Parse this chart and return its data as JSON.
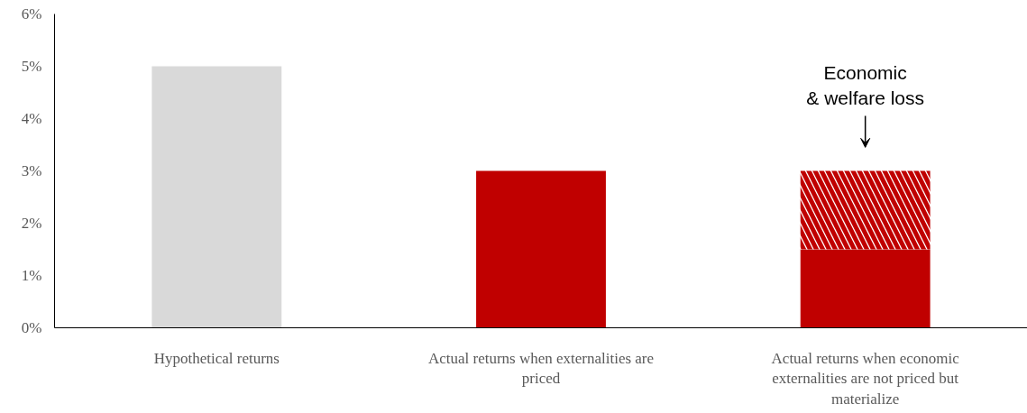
{
  "chart_data": {
    "type": "bar",
    "stacked": true,
    "categories": [
      "Hypothetical returns",
      "Actual returns when externalities are priced",
      "Actual returns when economic externalities are not priced but materialize"
    ],
    "series": [
      {
        "colors": [
          "#d9d9d9",
          "#c00000",
          "#c00000"
        ],
        "values": [
          5,
          3,
          1.5
        ]
      },
      {
        "color": "#c00000",
        "values": [
          null,
          null,
          1.5
        ]
      }
    ],
    "ylim": [
      0,
      6
    ],
    "yticks": [
      {
        "value": 0,
        "label": "0%"
      },
      {
        "value": 1,
        "label": "1%"
      },
      {
        "value": 2,
        "label": "2%"
      },
      {
        "value": 3,
        "label": "3%"
      },
      {
        "value": 4,
        "label": "4%"
      },
      {
        "value": 5,
        "label": "5%"
      },
      {
        "value": 6,
        "label": "6%"
      }
    ],
    "annotations": [
      "Economic\n& welfare loss"
    ]
  }
}
